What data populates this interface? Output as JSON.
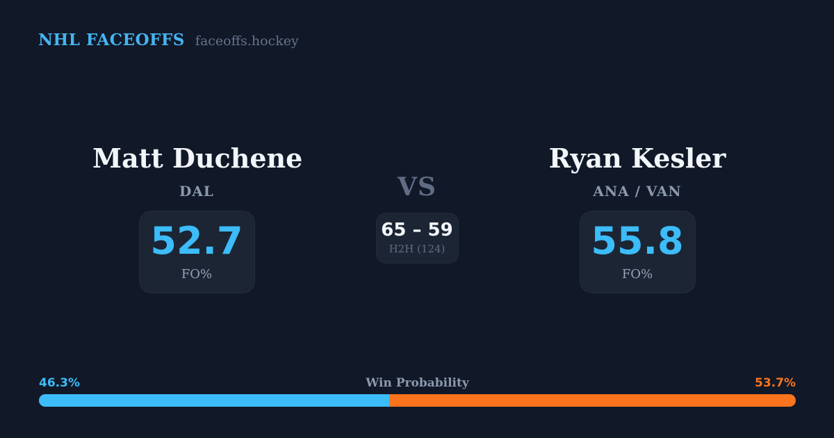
{
  "theme": {
    "background": "#111827",
    "card_bg": "#1c2534",
    "accent_blue": "#3cbcf8",
    "accent_orange": "#f9741c",
    "text_white": "#f2f5f9",
    "text_muted": "#8b99ad",
    "text_dim": "#5f6c82"
  },
  "header": {
    "brand": "NHL FACEOFFS",
    "site": "faceoffs.hockey"
  },
  "matchup": {
    "player_left": {
      "name": "Matt Duchene",
      "team": "DAL",
      "fo_pct": "52.7",
      "stat_label": "FO%"
    },
    "vs_label": "VS",
    "h2h": {
      "score": "65 – 59",
      "label": "H2H (124)"
    },
    "player_right": {
      "name": "Ryan Kesler",
      "team": "ANA / VAN",
      "fo_pct": "55.8",
      "stat_label": "FO%"
    }
  },
  "win_probability": {
    "label": "Win Probability",
    "left_pct_label": "46.3%",
    "right_pct_label": "53.7%",
    "left_value": 46.3,
    "right_value": 53.7
  }
}
